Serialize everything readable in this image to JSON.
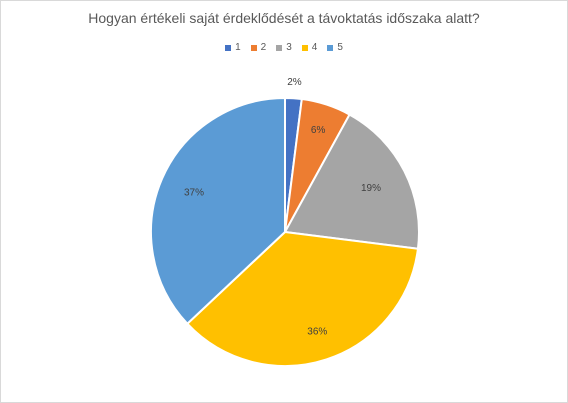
{
  "chart_data": {
    "type": "pie",
    "title": "Hogyan értékeli saját érdeklődését a távoktatás időszaka alatt?",
    "categories": [
      "1",
      "2",
      "3",
      "4",
      "5"
    ],
    "values": [
      2,
      6,
      19,
      36,
      37
    ],
    "labels": [
      "2%",
      "6%",
      "19%",
      "36%",
      "37%"
    ],
    "colors": [
      "#4472c4",
      "#ed7d31",
      "#a5a5a5",
      "#ffc000",
      "#5b9bd5"
    ],
    "legend": "top",
    "start_angle_deg": 0,
    "direction": "clockwise"
  }
}
